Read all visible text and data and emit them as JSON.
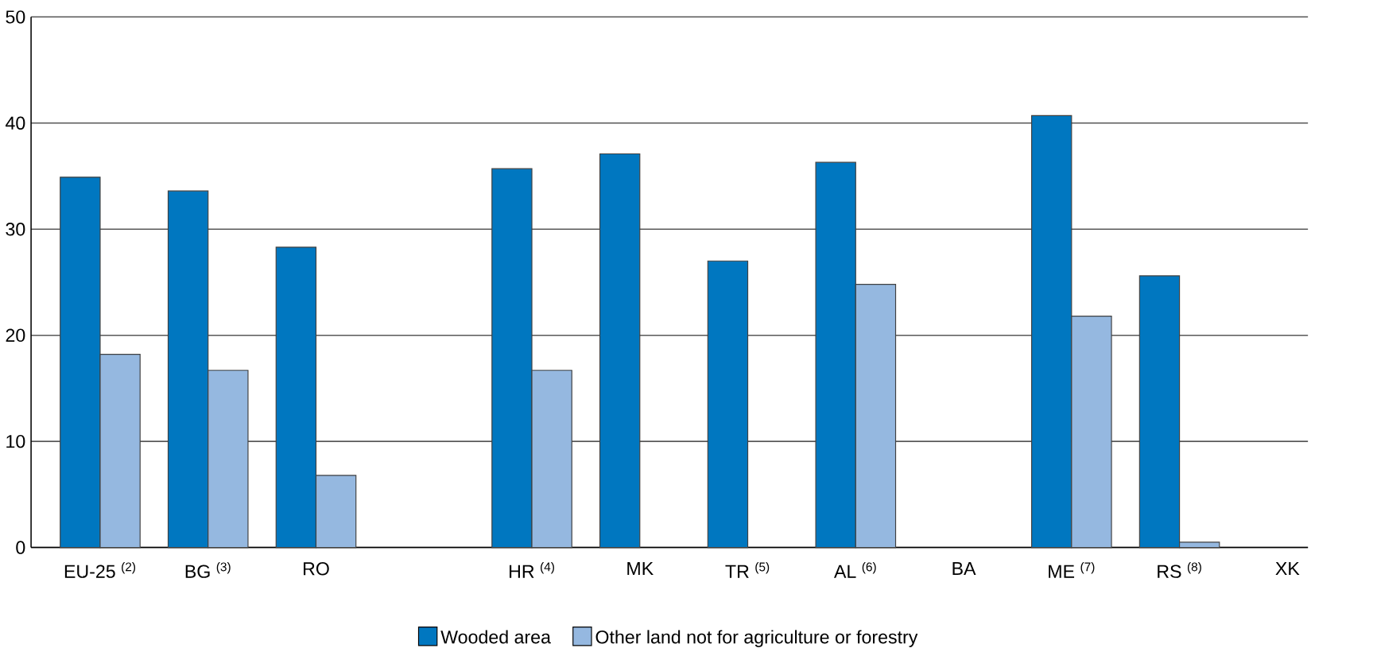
{
  "chart_data": {
    "type": "bar",
    "categories": [
      "EU-25 $^{(2)}$",
      "BG $^{(3)}$",
      "RO",
      null,
      "HR $^{(4)}$",
      "MK",
      "TR $^{(5)}$",
      "AL $^{(6)}$",
      "BA",
      "ME $^{(7)}$",
      "RS $^{(8)}$",
      "XK"
    ],
    "series": [
      {
        "name": "Wooded area",
        "color": "#0077c0",
        "values": [
          34.9,
          33.6,
          28.3,
          null,
          35.7,
          37.1,
          27.0,
          36.3,
          null,
          40.7,
          25.6,
          null
        ]
      },
      {
        "name": "Other land not for agriculture or forestry",
        "color": "#95b8e0",
        "values": [
          18.2,
          16.7,
          6.8,
          null,
          16.7,
          null,
          null,
          24.8,
          null,
          21.8,
          0.5,
          null
        ]
      }
    ],
    "ylim": [
      0,
      50
    ],
    "yticks": [
      0,
      10,
      20,
      30,
      40,
      50
    ],
    "grid": "y",
    "legend": "bottom"
  }
}
